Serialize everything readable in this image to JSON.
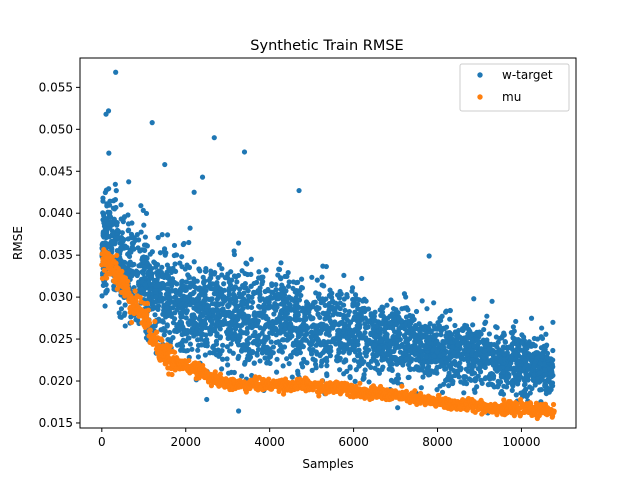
{
  "chart_data": {
    "type": "scatter",
    "title": "Synthetic Train RMSE",
    "xlabel": "Samples",
    "ylabel": "RMSE",
    "xlim": [
      -520,
      11300
    ],
    "ylim": [
      0.0144,
      0.0585
    ],
    "xticks": [
      0,
      2000,
      4000,
      6000,
      8000,
      10000
    ],
    "yticks": [
      0.015,
      0.02,
      0.025,
      0.03,
      0.035,
      0.04,
      0.045,
      0.05,
      0.055
    ],
    "ytick_labels": [
      "0.015",
      "0.020",
      "0.025",
      "0.030",
      "0.035",
      "0.040",
      "0.045",
      "0.050",
      "0.055"
    ],
    "xtick_labels": [
      "0",
      "2000",
      "4000",
      "6000",
      "8000",
      "10000"
    ],
    "grid": false,
    "legend_position": "top-right",
    "series": [
      {
        "name": "w-target",
        "color": "#1f77b4",
        "marker": "circle",
        "x": [
          0,
          150,
          300,
          500,
          700,
          900,
          1100,
          1300,
          1500,
          1700,
          1900,
          2100,
          2300,
          2500,
          2700,
          2900,
          3100,
          3300,
          3500,
          3700,
          3900,
          4100,
          4300,
          4500,
          4700,
          4900,
          5100,
          5300,
          5500,
          5700,
          5900,
          6100,
          6300,
          6500,
          6700,
          6900,
          7100,
          7300,
          7500,
          7700,
          7900,
          8100,
          8300,
          8500,
          8700,
          8900,
          9100,
          9300,
          9500,
          9700,
          9900,
          10100,
          10300,
          10500,
          10750
        ],
        "y": [
          0.0355,
          0.0375,
          0.036,
          0.0345,
          0.033,
          0.032,
          0.031,
          0.03,
          0.0295,
          0.029,
          0.0285,
          0.0285,
          0.028,
          0.028,
          0.0278,
          0.0278,
          0.0278,
          0.0278,
          0.0276,
          0.0276,
          0.0275,
          0.0274,
          0.0273,
          0.0272,
          0.027,
          0.0268,
          0.0266,
          0.0264,
          0.0262,
          0.026,
          0.0258,
          0.0256,
          0.0254,
          0.0252,
          0.025,
          0.0248,
          0.0247,
          0.0246,
          0.0244,
          0.0242,
          0.024,
          0.0238,
          0.0236,
          0.0234,
          0.0232,
          0.023,
          0.0228,
          0.0226,
          0.0224,
          0.0222,
          0.022,
          0.0218,
          0.0216,
          0.0215,
          0.0214
        ],
        "spread": [
          0.005,
          0.0055,
          0.0055,
          0.0055,
          0.0055,
          0.0055,
          0.0055,
          0.0055,
          0.0055,
          0.0055,
          0.0055,
          0.0055,
          0.0055,
          0.0055,
          0.0055,
          0.0055,
          0.0055,
          0.0055,
          0.005,
          0.005,
          0.005,
          0.005,
          0.005,
          0.005,
          0.005,
          0.005,
          0.0048,
          0.0048,
          0.0046,
          0.0045,
          0.0045,
          0.0045,
          0.0045,
          0.0042,
          0.004,
          0.004,
          0.004,
          0.004,
          0.004,
          0.0038,
          0.0037,
          0.0036,
          0.0035,
          0.0034,
          0.0033,
          0.0032,
          0.0032,
          0.0032,
          0.0032,
          0.0032,
          0.0032,
          0.0032,
          0.0032,
          0.0032,
          0.0032
        ],
        "outliers": [
          [
            330,
            0.0568
          ],
          [
            160,
            0.0522
          ],
          [
            100,
            0.0518
          ],
          [
            1200,
            0.0508
          ],
          [
            2680,
            0.049
          ],
          [
            3400,
            0.0473
          ],
          [
            4700,
            0.0427
          ],
          [
            7800,
            0.0349
          ],
          [
            9300,
            0.0295
          ],
          [
            10750,
            0.027
          ],
          [
            2200,
            0.0425
          ],
          [
            2400,
            0.0443
          ],
          [
            1500,
            0.0458
          ]
        ],
        "minimum": [
          [
            9200,
            0.0162
          ],
          [
            2500,
            0.0178
          ]
        ]
      },
      {
        "name": "mu",
        "color": "#ff7f0e",
        "marker": "circle",
        "x": [
          0,
          100,
          200,
          300,
          400,
          500,
          600,
          700,
          800,
          900,
          1000,
          1100,
          1200,
          1300,
          1400,
          1500,
          1600,
          1800,
          2000,
          2200,
          2400,
          2600,
          2800,
          3000,
          3200,
          3400,
          3600,
          3800,
          4000,
          4200,
          4400,
          4600,
          4800,
          5000,
          5200,
          5400,
          5600,
          5800,
          6000,
          6200,
          6400,
          6600,
          6800,
          7000,
          7200,
          7400,
          7600,
          7800,
          8000,
          8200,
          8400,
          8600,
          8800,
          9000,
          9200,
          9400,
          9600,
          9800,
          10000,
          10200,
          10400,
          10600,
          10780
        ],
        "y": [
          0.0336,
          0.0342,
          0.0345,
          0.0335,
          0.0325,
          0.0315,
          0.0305,
          0.0298,
          0.0292,
          0.0285,
          0.0278,
          0.0268,
          0.0258,
          0.0248,
          0.024,
          0.0232,
          0.0226,
          0.022,
          0.0218,
          0.0215,
          0.021,
          0.0205,
          0.02,
          0.0197,
          0.0196,
          0.0195,
          0.0196,
          0.0196,
          0.0195,
          0.0196,
          0.0195,
          0.0195,
          0.0196,
          0.0194,
          0.0192,
          0.0191,
          0.0193,
          0.0193,
          0.019,
          0.0187,
          0.0185,
          0.0185,
          0.0184,
          0.0183,
          0.0182,
          0.018,
          0.0178,
          0.0176,
          0.0175,
          0.0174,
          0.0172,
          0.0171,
          0.0172,
          0.0171,
          0.0168,
          0.0168,
          0.0167,
          0.0166,
          0.0167,
          0.0166,
          0.0165,
          0.0165,
          0.0164
        ]
      }
    ]
  }
}
